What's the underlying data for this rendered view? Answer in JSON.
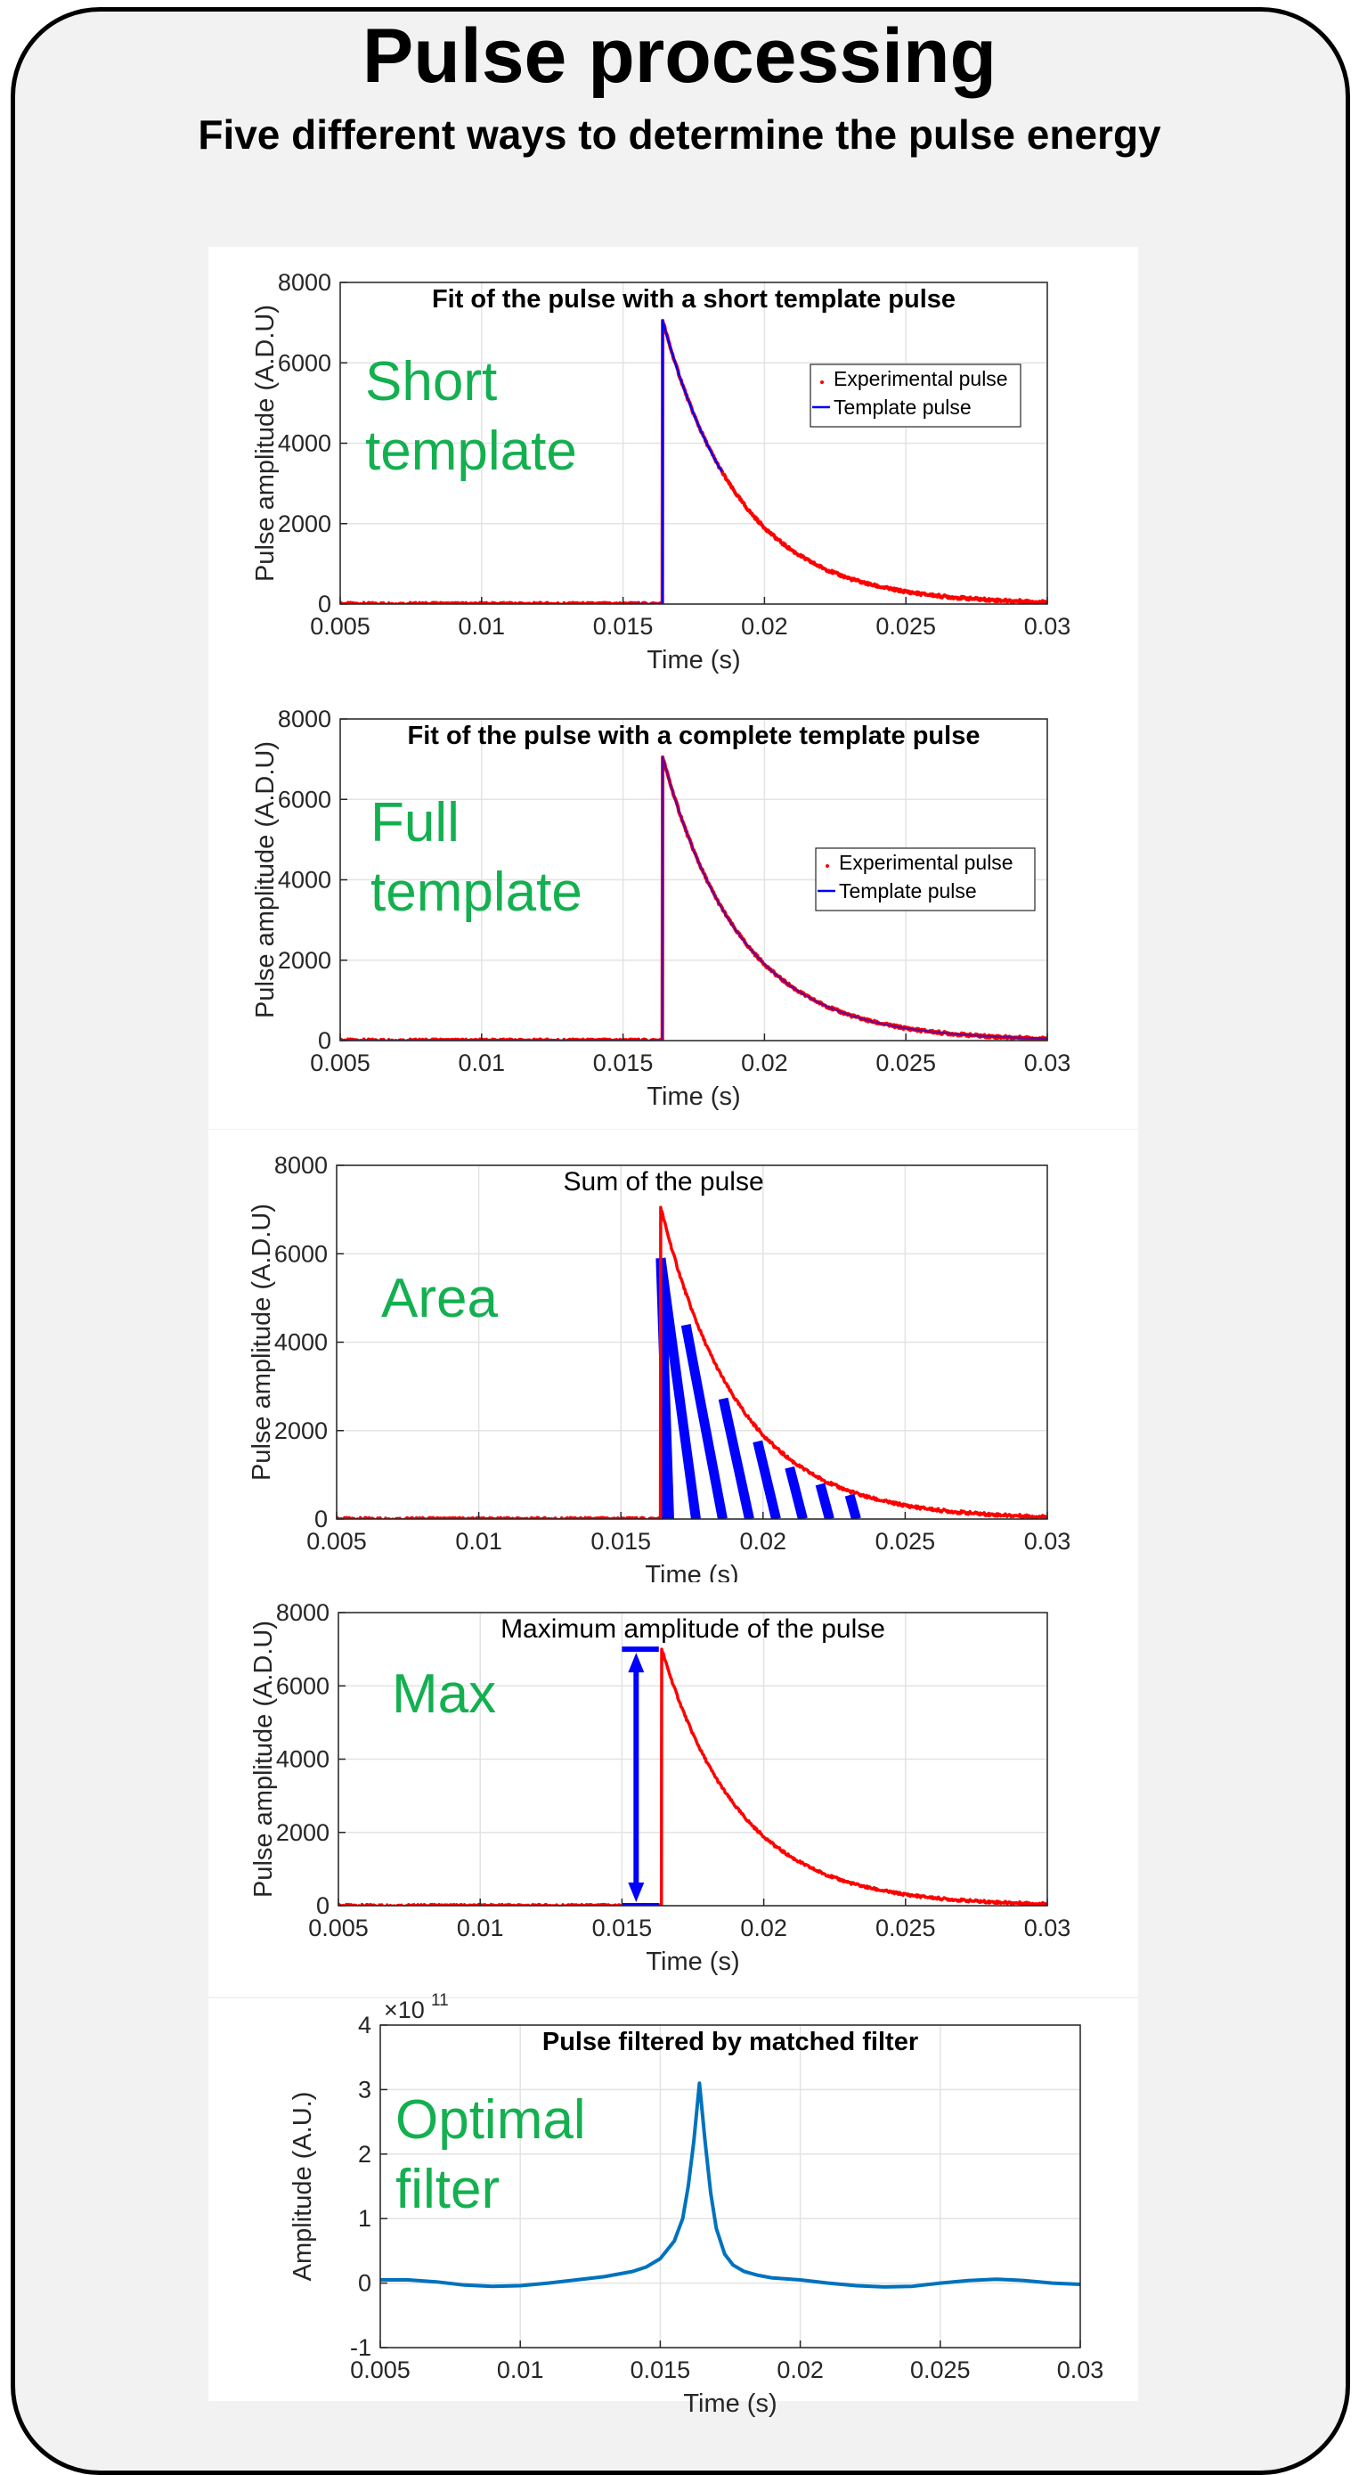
{
  "header": {
    "title": "Pulse processing",
    "subtitle": "Five different ways to determine the pulse energy"
  },
  "chart_data": [
    {
      "type": "line",
      "title": "Fit of the pulse with a short template pulse",
      "method_label": [
        "Short",
        "template"
      ],
      "xlabel": "Time (s)",
      "ylabel": "Pulse amplitude (A.D.U)",
      "xlim": [
        0.005,
        0.03
      ],
      "ylim": [
        0,
        8000
      ],
      "xticks": [
        "0.005",
        "0.01",
        "0.015",
        "0.02",
        "0.025",
        "0.03"
      ],
      "yticks": [
        "0",
        "2000",
        "4000",
        "6000",
        "8000"
      ],
      "grid": true,
      "legend": "upper-right",
      "series": [
        {
          "name": "Experimental pulse",
          "color": "#ff0000",
          "style": "dots",
          "model": {
            "t0": 0.0164,
            "peak": 7050,
            "tau": 0.00275,
            "end": 0.03
          }
        },
        {
          "name": "Template pulse",
          "color": "#0000ff",
          "style": "line",
          "model": {
            "t0": 0.0164,
            "peak": 7050,
            "tau": 0.00275,
            "end": 0.0185
          }
        }
      ],
      "colors": {
        "method_label": "#14b050"
      }
    },
    {
      "type": "line",
      "title": "Fit of the pulse with a complete template pulse",
      "method_label": [
        "Full",
        "template"
      ],
      "xlabel": "Time (s)",
      "ylabel": "Pulse amplitude (A.D.U)",
      "xlim": [
        0.005,
        0.03
      ],
      "ylim": [
        0,
        8000
      ],
      "xticks": [
        "0.005",
        "0.01",
        "0.015",
        "0.02",
        "0.025",
        "0.03"
      ],
      "yticks": [
        "0",
        "2000",
        "4000",
        "6000",
        "8000"
      ],
      "grid": true,
      "legend": "right",
      "series": [
        {
          "name": "Experimental pulse",
          "color": "#ff0000",
          "style": "dots",
          "model": {
            "t0": 0.0164,
            "peak": 7050,
            "tau": 0.00275,
            "end": 0.03
          }
        },
        {
          "name": "Template pulse",
          "color": "#0000ff",
          "style": "line",
          "model": {
            "t0": 0.0164,
            "peak": 7050,
            "tau": 0.00275,
            "end": 0.03
          }
        }
      ],
      "colors": {
        "method_label": "#14b050"
      }
    },
    {
      "type": "area",
      "title": "Sum of the pulse",
      "method_label": [
        "Area"
      ],
      "xlabel": "Time (s)",
      "ylabel": "Pulse amplitude (A.D.U)",
      "xlim": [
        0.005,
        0.03
      ],
      "ylim": [
        0,
        8000
      ],
      "xticks": [
        "0.005",
        "0.01",
        "0.015",
        "0.02",
        "0.025",
        "0.03"
      ],
      "yticks": [
        "0",
        "2000",
        "4000",
        "6000",
        "8000"
      ],
      "grid": true,
      "series": [
        {
          "color": "#ff0000",
          "style": "line",
          "model": {
            "t0": 0.0164,
            "peak": 7050,
            "tau": 0.00275,
            "end": 0.03
          }
        }
      ],
      "hatched_region": {
        "x": [
          0.0164,
          0.024
        ],
        "color": "#0000ff"
      },
      "colors": {
        "method_label": "#14b050"
      }
    },
    {
      "type": "line",
      "title": "Maximum amplitude of the pulse",
      "method_label": [
        "Max"
      ],
      "xlabel": "Time (s)",
      "ylabel": "Pulse amplitude (A.D.U)",
      "xlim": [
        0.005,
        0.03
      ],
      "ylim": [
        0,
        8000
      ],
      "xticks": [
        "0.005",
        "0.01",
        "0.015",
        "0.02",
        "0.025",
        "0.03"
      ],
      "yticks": [
        "0",
        "2000",
        "4000",
        "6000",
        "8000"
      ],
      "grid": true,
      "series": [
        {
          "color": "#ff0000",
          "style": "line",
          "model": {
            "t0": 0.0164,
            "peak": 7000,
            "tau": 0.00275,
            "end": 0.03
          }
        }
      ],
      "max_marker": {
        "x": 0.0155,
        "y_low": 0,
        "y_high": 7000,
        "cap_x": [
          0.015,
          0.0163
        ],
        "color": "#0000ff"
      },
      "colors": {
        "method_label": "#14b050"
      }
    },
    {
      "type": "line",
      "title": "Pulse filtered by matched filter",
      "method_label": [
        "Optimal",
        "filter"
      ],
      "xlabel": "Time (s)",
      "ylabel": "Amplitude (A.U.)",
      "yscale_label": "×10",
      "yscale_exponent": "11",
      "xlim": [
        0.005,
        0.03
      ],
      "ylim": [
        -1,
        4
      ],
      "xticks": [
        "0.005",
        "0.01",
        "0.015",
        "0.02",
        "0.025",
        "0.03"
      ],
      "yticks": [
        "-1",
        "0",
        "1",
        "2",
        "3",
        "4"
      ],
      "grid": true,
      "series": [
        {
          "color": "#0072bd",
          "style": "line",
          "x": [
            0.005,
            0.006,
            0.007,
            0.008,
            0.009,
            0.01,
            0.011,
            0.012,
            0.013,
            0.014,
            0.0145,
            0.015,
            0.0155,
            0.0158,
            0.016,
            0.0162,
            0.0164,
            0.0166,
            0.0168,
            0.017,
            0.0173,
            0.0176,
            0.018,
            0.0185,
            0.019,
            0.02,
            0.021,
            0.022,
            0.023,
            0.024,
            0.025,
            0.026,
            0.027,
            0.028,
            0.029,
            0.03
          ],
          "y": [
            0.05,
            0.05,
            0.02,
            -0.03,
            -0.05,
            -0.04,
            0.0,
            0.05,
            0.1,
            0.18,
            0.25,
            0.38,
            0.65,
            1.0,
            1.5,
            2.2,
            3.1,
            2.2,
            1.4,
            0.85,
            0.45,
            0.28,
            0.18,
            0.12,
            0.08,
            0.05,
            0.0,
            -0.04,
            -0.06,
            -0.05,
            0.0,
            0.04,
            0.06,
            0.04,
            0.0,
            -0.02
          ]
        }
      ],
      "colors": {
        "method_label": "#14b050"
      }
    }
  ]
}
